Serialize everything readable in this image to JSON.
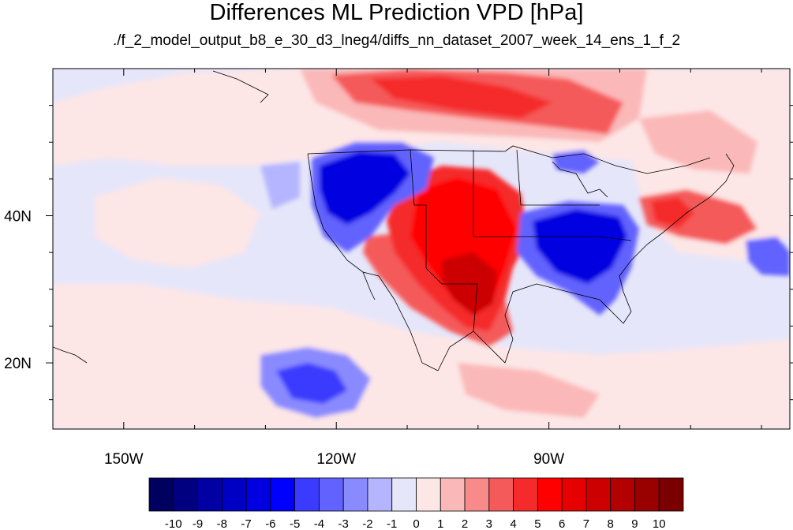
{
  "title": "Differences ML Prediction VPD [hPa]",
  "subtitle": "./f_2_model_output_b8_e_30_d3_lneg4/diffs_nn_dataset_2007_week_14_ens_1_f_2",
  "map": {
    "lon_range": [
      -160,
      -56
    ],
    "lat_range": [
      11,
      60
    ],
    "x_ticks": [
      {
        "value": -150,
        "label": "150W"
      },
      {
        "value": -120,
        "label": "120W"
      },
      {
        "value": -90,
        "label": "90W"
      }
    ],
    "y_ticks": [
      {
        "value": 40,
        "label": "40N"
      },
      {
        "value": 20,
        "label": "20N"
      }
    ]
  },
  "colorbar": {
    "labels": [
      "-10",
      "-9",
      "-8",
      "-7",
      "-6",
      "-5",
      "-4",
      "-3",
      "-2",
      "-1",
      "0",
      "1",
      "2",
      "3",
      "4",
      "5",
      "6",
      "7",
      "8",
      "9",
      "10"
    ],
    "colors": [
      "#00005e",
      "#000080",
      "#0000a3",
      "#0000c4",
      "#0000e0",
      "#0000ff",
      "#3b3bff",
      "#6262ff",
      "#8a8aff",
      "#b5b5ff",
      "#e6e6fa",
      "#fde6e6",
      "#fbb8b8",
      "#f88a8a",
      "#f55a5a",
      "#f52a2a",
      "#ff0000",
      "#e60000",
      "#cc0000",
      "#b30000",
      "#990000",
      "#7a0000"
    ]
  }
}
